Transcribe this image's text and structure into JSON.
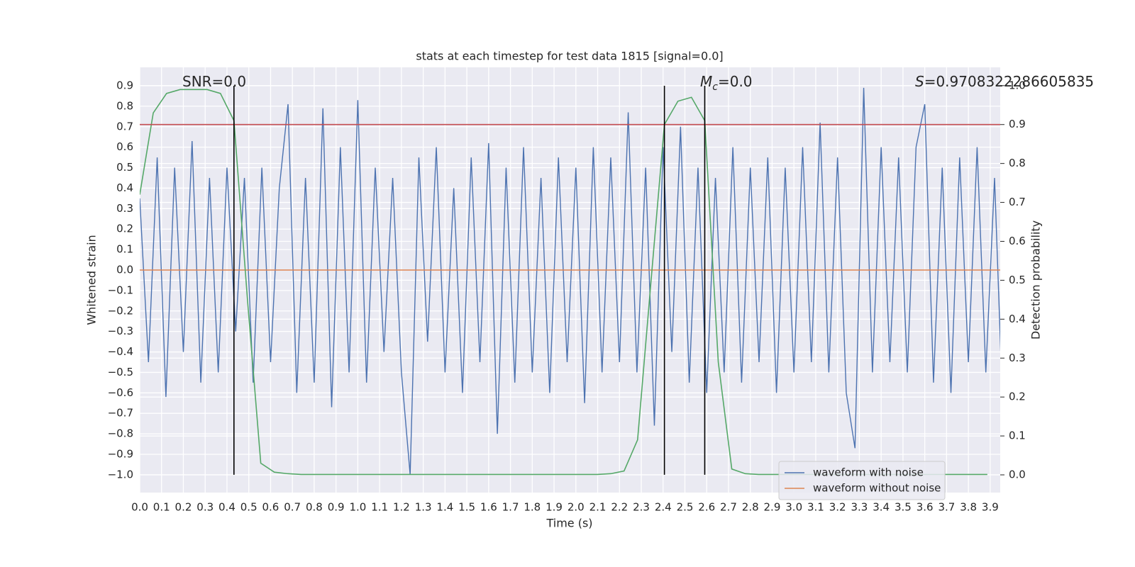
{
  "chart_data": {
    "type": "line",
    "title": "stats at each timestep for test data 1815 [signal=0.0]",
    "xlabel": "Time (s)",
    "ylabel": "Whitened strain",
    "y2label": "Detection probability",
    "xlim": [
      0,
      3.946
    ],
    "ylim": [
      -1.087,
      0.99
    ],
    "y2lim": [
      -0.0455,
      1.047
    ],
    "grid": true,
    "legend": "lower right",
    "xticks": [
      {
        "value": 0,
        "label": "0.0"
      },
      0.1,
      0.2,
      0.3,
      0.4,
      0.5,
      0.6,
      0.7,
      0.8,
      0.9,
      {
        "value": 1,
        "label": "1.0"
      },
      1.1,
      1.2,
      1.3,
      1.4,
      1.5,
      1.6,
      1.7,
      1.8,
      1.9,
      {
        "value": 2,
        "label": "2.0"
      },
      2.1,
      2.2,
      2.3,
      2.4,
      2.5,
      2.6,
      2.7,
      2.8,
      2.9,
      {
        "value": 3,
        "label": "3.0"
      },
      3.1,
      3.2,
      3.3,
      3.4,
      3.5,
      3.6,
      3.7,
      3.8,
      3.9
    ],
    "yticks": [
      {
        "value": -1,
        "label": "−1.0"
      },
      {
        "value": -0.9,
        "label": "−0.9"
      },
      {
        "value": -0.8,
        "label": "−0.8"
      },
      {
        "value": -0.7,
        "label": "−0.7"
      },
      {
        "value": -0.6,
        "label": "−0.6"
      },
      {
        "value": -0.5,
        "label": "−0.5"
      },
      {
        "value": -0.4,
        "label": "−0.4"
      },
      {
        "value": -0.3,
        "label": "−0.3"
      },
      {
        "value": -0.2,
        "label": "−0.2"
      },
      {
        "value": -0.1,
        "label": "−0.1"
      },
      {
        "value": 0,
        "label": "0.0"
      },
      0.1,
      0.2,
      0.3,
      0.4,
      0.5,
      0.6,
      0.7,
      0.8,
      0.9
    ],
    "y2ticks": [
      {
        "value": 0,
        "label": "0.0"
      },
      0.1,
      0.2,
      0.3,
      0.4,
      0.5,
      0.6,
      0.7,
      0.8,
      0.9,
      {
        "value": 1,
        "label": "1.0"
      }
    ],
    "series": [
      {
        "name": "waveform with noise",
        "color": "#4c72b0",
        "x": [
          0,
          0.04,
          0.08,
          0.12,
          0.16,
          0.2,
          0.24,
          0.28,
          0.32,
          0.36,
          0.4,
          0.44,
          0.48,
          0.52,
          0.56,
          0.6,
          0.64,
          0.68,
          0.72,
          0.76,
          0.8,
          0.84,
          0.88,
          0.92,
          0.96,
          1,
          1.04,
          1.08,
          1.12,
          1.16,
          1.2,
          1.24,
          1.28,
          1.32,
          1.36,
          1.4,
          1.44,
          1.48,
          1.52,
          1.56,
          1.6,
          1.64,
          1.68,
          1.72,
          1.76,
          1.8,
          1.84,
          1.88,
          1.92,
          1.96,
          2,
          2.04,
          2.08,
          2.12,
          2.16,
          2.2,
          2.24,
          2.28,
          2.32,
          2.36,
          2.4,
          2.44,
          2.48,
          2.52,
          2.56,
          2.6,
          2.64,
          2.68,
          2.72,
          2.76,
          2.8,
          2.84,
          2.88,
          2.92,
          2.96,
          3,
          3.04,
          3.08,
          3.12,
          3.16,
          3.2,
          3.24,
          3.28,
          3.32,
          3.36,
          3.4,
          3.44,
          3.48,
          3.52,
          3.56,
          3.6,
          3.64,
          3.68,
          3.72,
          3.76,
          3.8,
          3.84,
          3.88,
          3.92,
          3.96
        ],
        "values": [
          0.35,
          -0.45,
          0.55,
          -0.62,
          0.5,
          -0.4,
          0.63,
          -0.55,
          0.45,
          -0.5,
          0.5,
          -0.3,
          0.45,
          -0.55,
          0.5,
          -0.45,
          0.4,
          0.81,
          -0.6,
          0.45,
          -0.55,
          0.79,
          -0.67,
          0.6,
          -0.5,
          0.83,
          -0.55,
          0.5,
          -0.4,
          0.45,
          -0.5,
          -1.0,
          0.55,
          -0.35,
          0.6,
          -0.5,
          0.4,
          -0.6,
          0.55,
          -0.45,
          0.62,
          -0.8,
          0.5,
          -0.55,
          0.6,
          -0.5,
          0.45,
          -0.6,
          0.55,
          -0.45,
          0.5,
          -0.65,
          0.6,
          -0.5,
          0.55,
          -0.45,
          0.77,
          -0.5,
          0.5,
          -0.76,
          0.6,
          -0.4,
          0.7,
          -0.55,
          0.5,
          -0.6,
          0.45,
          -0.5,
          0.6,
          -0.55,
          0.5,
          -0.45,
          0.55,
          -0.6,
          0.5,
          -0.5,
          0.6,
          -0.45,
          0.72,
          -0.5,
          0.55,
          -0.6,
          -0.87,
          0.89,
          -0.5,
          0.6,
          -0.45,
          0.55,
          -0.5,
          0.6,
          0.81,
          -0.55,
          0.5,
          -0.6,
          0.55,
          -0.45,
          0.6,
          -0.5,
          0.45,
          -0.75
        ]
      },
      {
        "name": "waveform without noise",
        "color": "#dd8452",
        "x": [
          0,
          3.96
        ],
        "values": [
          0,
          0
        ]
      },
      {
        "color": "#55a868",
        "axis": "y2",
        "x": [
          0,
          0.062,
          0.123,
          0.185,
          0.247,
          0.309,
          0.37,
          0.432,
          0.494,
          0.555,
          0.617,
          0.679,
          0.74,
          0.802,
          0.864,
          0.926,
          0.987,
          1.049,
          1.111,
          1.172,
          1.234,
          1.296,
          1.357,
          1.419,
          1.481,
          1.543,
          1.604,
          1.666,
          1.728,
          1.789,
          1.851,
          1.913,
          1.974,
          2.036,
          2.098,
          2.16,
          2.221,
          2.283,
          2.345,
          2.406,
          2.468,
          2.53,
          2.591,
          2.653,
          2.715,
          2.777,
          2.838,
          2.9,
          2.962,
          3.023,
          3.085,
          3.147,
          3.208,
          3.27,
          3.332,
          3.394,
          3.455,
          3.517,
          3.579,
          3.64,
          3.702,
          3.764,
          3.826,
          3.887
        ],
        "values": [
          0.72,
          0.93,
          0.98,
          0.99,
          0.99,
          0.99,
          0.98,
          0.91,
          0.45,
          0.03,
          0.007,
          0.003,
          0.001,
          0.001,
          0.001,
          0.001,
          0.001,
          0.001,
          0.001,
          0.001,
          0.001,
          0.001,
          0.001,
          0.001,
          0.001,
          0.001,
          0.001,
          0.001,
          0.001,
          0.001,
          0.001,
          0.001,
          0.001,
          0.001,
          0.001,
          0.003,
          0.01,
          0.09,
          0.5,
          0.9,
          0.96,
          0.97,
          0.91,
          0.29,
          0.015,
          0.003,
          0.001,
          0.001,
          0.001,
          0.001,
          0.001,
          0.001,
          0.001,
          0.001,
          0.001,
          0.001,
          0.001,
          0.001,
          0.001,
          0.001,
          0.001,
          0.001,
          0.001,
          0.001
        ]
      }
    ],
    "hlines": [
      {
        "value": 0.9,
        "axis": "y2",
        "color": "#c44e52"
      }
    ],
    "vlines": {
      "x": [
        0.432,
        2.406,
        2.591
      ],
      "ymin": -1.0,
      "ymax": 0.9,
      "color": "#000000"
    },
    "annotations": [
      {
        "text": "SNR=0.0"
      },
      {
        "text": "M",
        "sub": "c",
        "rest": "=0.0"
      },
      {
        "text": "S",
        "rest": "=0.9708322286605835"
      }
    ]
  }
}
